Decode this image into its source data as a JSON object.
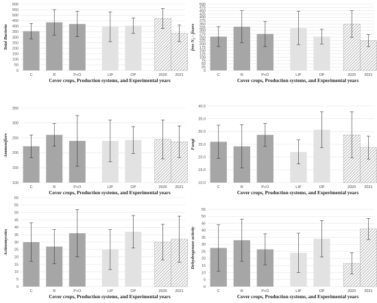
{
  "chart_data": [
    {
      "type": "bar",
      "ylabel": "Total Bacteria",
      "xlabel": "Cover crops, Production systems, and Experimental years",
      "ylim": [
        0,
        600
      ],
      "yticks": [
        0,
        50,
        100,
        150,
        200,
        250,
        300,
        350,
        400,
        450,
        500,
        550,
        600
      ],
      "groups": [
        {
          "style": "dark",
          "categories": [
            "C",
            "R",
            "P+O"
          ]
        },
        {
          "style": "light",
          "categories": [
            "LIP",
            "OP"
          ]
        },
        {
          "style": "hatch",
          "categories": [
            "2020",
            "2021"
          ]
        }
      ],
      "categories": [
        "C",
        "R",
        "P+O",
        "LIP",
        "OP",
        "2020",
        "2021"
      ],
      "values": [
        355,
        435,
        420,
        395,
        405,
        470,
        335
      ],
      "errors": [
        70,
        115,
        115,
        135,
        70,
        90,
        75
      ]
    },
    {
      "type": "bar",
      "ylabel": "free N₂ - fixers",
      "xlabel": "Cover crops, Production systems, and Experimental years",
      "ylim": [
        0,
        500
      ],
      "yticks": [
        0,
        25,
        50,
        75,
        100,
        125,
        150,
        175,
        200,
        225,
        250,
        275,
        300,
        325,
        350,
        375,
        400,
        425,
        450,
        475,
        500
      ],
      "groups": [
        {
          "style": "dark",
          "categories": [
            "C",
            "R",
            "P+O"
          ]
        },
        {
          "style": "light",
          "categories": [
            "LIP",
            "OP"
          ]
        },
        {
          "style": "hatch",
          "categories": [
            "2020",
            "2021"
          ]
        }
      ],
      "categories": [
        "C",
        "R",
        "P+O",
        "LIP",
        "OP",
        "2020",
        "2021"
      ],
      "values": [
        255,
        330,
        275,
        320,
        255,
        350,
        225
      ],
      "errors": [
        75,
        120,
        95,
        125,
        55,
        100,
        45
      ]
    },
    {
      "type": "bar",
      "ylabel": "Ammonifiers",
      "xlabel": "Cover crops, Production systems, and Experimental years",
      "ylim": [
        100,
        350
      ],
      "yticks": [
        100,
        150,
        200,
        250,
        300,
        350
      ],
      "groups": [
        {
          "style": "dark",
          "categories": [
            "C",
            "R",
            "P+O"
          ]
        },
        {
          "style": "light",
          "categories": [
            "LIP",
            "OP"
          ]
        },
        {
          "style": "hatch",
          "categories": [
            "2020",
            "2021"
          ]
        }
      ],
      "categories": [
        "C",
        "R",
        "P+O",
        "LIP",
        "OP",
        "2020",
        "2021"
      ],
      "values": [
        222,
        260,
        240,
        240,
        243,
        245,
        237
      ],
      "errors": [
        38,
        38,
        85,
        70,
        45,
        65,
        53
      ]
    },
    {
      "type": "bar",
      "ylabel": "Fungi",
      "xlabel": "Cover crops, Production systems, and Experimental years",
      "ylim": [
        10,
        40
      ],
      "yticks": [
        10.0,
        15.0,
        20.0,
        25.0,
        30.0,
        35.0,
        40.0
      ],
      "ytick_labels": [
        "10.0",
        "15.0",
        "20.0",
        "25.0",
        "30.0",
        "35.0",
        "40.0"
      ],
      "groups": [
        {
          "style": "dark",
          "categories": [
            "C",
            "R",
            "P+O"
          ]
        },
        {
          "style": "light",
          "categories": [
            "LIP",
            "OP"
          ]
        },
        {
          "style": "hatch",
          "categories": [
            "2020",
            "2021"
          ]
        }
      ],
      "categories": [
        "C",
        "R",
        "P+O",
        "LIP",
        "OP",
        "2020",
        "2021"
      ],
      "values": [
        26.0,
        24.2,
        28.7,
        22.0,
        30.7,
        28.7,
        23.7
      ],
      "errors": [
        6.5,
        8.5,
        4.5,
        4.7,
        7.0,
        9.0,
        4.5
      ]
    },
    {
      "type": "bar",
      "ylabel": "Actinomycetes",
      "xlabel": "Cover crops, Production systems, and Experimental years",
      "ylim": [
        0,
        60
      ],
      "yticks": [
        0,
        5,
        10,
        15,
        20,
        25,
        30,
        35,
        40,
        45,
        50,
        55,
        60
      ],
      "groups": [
        {
          "style": "dark",
          "categories": [
            "C",
            "R",
            "P+O"
          ]
        },
        {
          "style": "light",
          "categories": [
            "LIP",
            "OP"
          ]
        },
        {
          "style": "hatch",
          "categories": [
            "2020",
            "2021"
          ]
        }
      ],
      "categories": [
        "C",
        "R",
        "P+O",
        "LIP",
        "OP",
        "2020",
        "2021"
      ],
      "values": [
        30,
        27,
        36,
        25,
        37,
        30,
        32
      ],
      "errors": [
        13,
        11.5,
        16,
        13.5,
        11,
        12,
        15.5
      ]
    },
    {
      "type": "bar",
      "ylabel": "Dehydrogenase activity",
      "xlabel": "Cover crops, Production systems, and Experimental years",
      "ylim": [
        0,
        55
      ],
      "yticks": [
        0,
        5,
        10,
        15,
        20,
        25,
        30,
        35,
        40,
        45,
        50,
        55
      ],
      "groups": [
        {
          "style": "dark",
          "categories": [
            "C",
            "R",
            "P+O"
          ]
        },
        {
          "style": "light",
          "categories": [
            "LIP",
            "OP"
          ]
        },
        {
          "style": "hatch",
          "categories": [
            "2020",
            "2021"
          ]
        }
      ],
      "categories": [
        "C",
        "R",
        "P+O",
        "LIP",
        "OP",
        "2020",
        "2021"
      ],
      "values": [
        27.5,
        33,
        26.5,
        24,
        34,
        16.5,
        41
      ],
      "errors": [
        16.5,
        15,
        11,
        14,
        13,
        7.5,
        7.5
      ]
    }
  ],
  "colors": {
    "dark": "#a6a6a6",
    "light": "#e2e2e2",
    "hatch_fill": "#ffffff",
    "hatch_line": "#8c8c8c",
    "error_bar": "#333333"
  }
}
